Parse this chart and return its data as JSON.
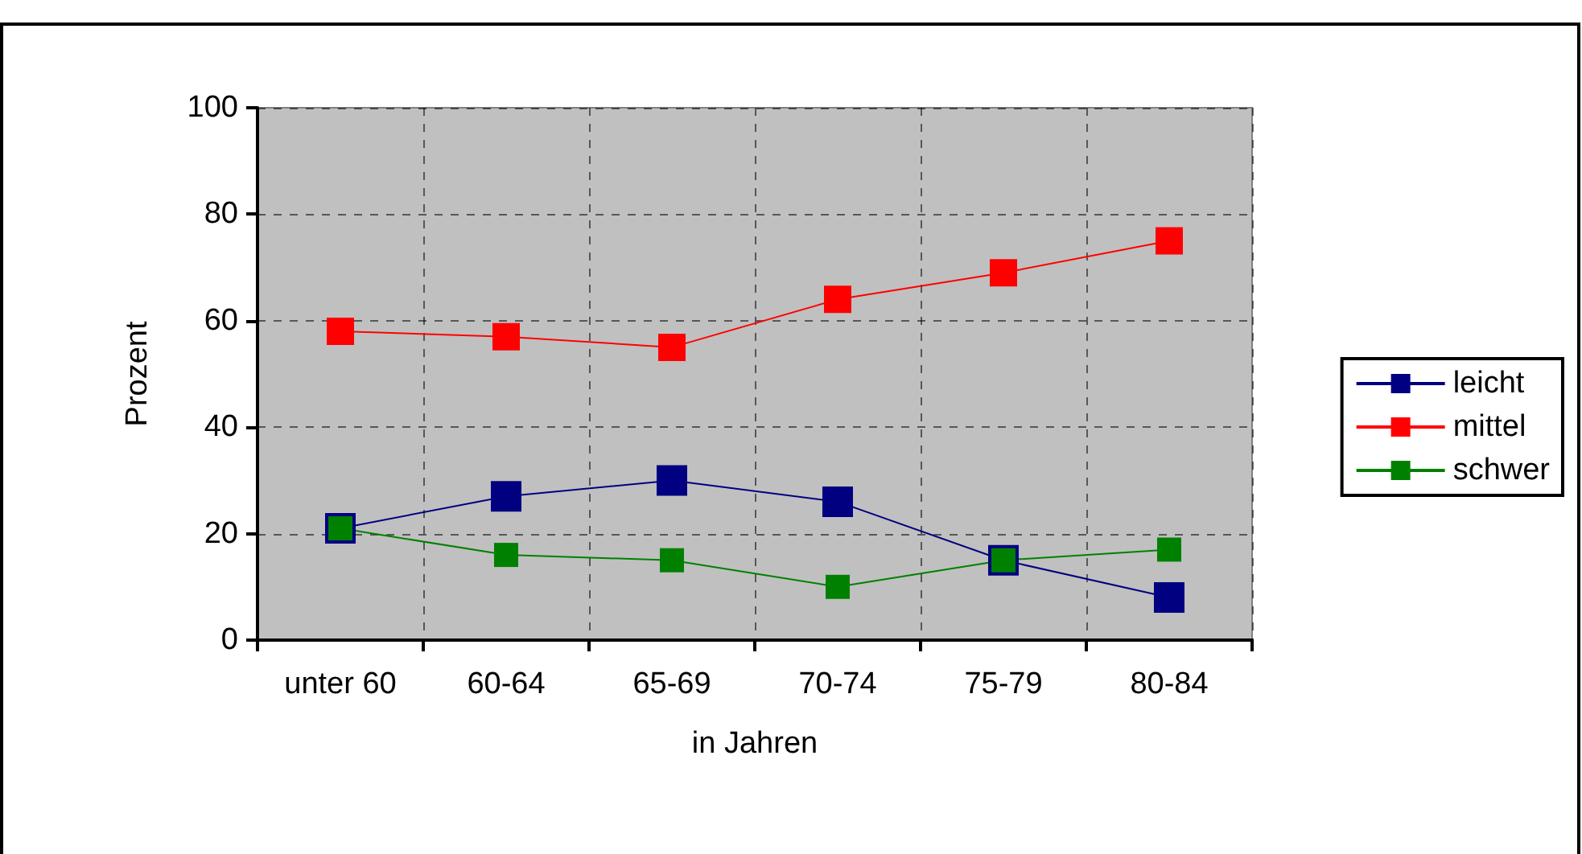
{
  "chart_data": {
    "type": "line",
    "xlabel": "in Jahren",
    "ylabel": "Prozent",
    "categories": [
      "unter 60",
      "60-64",
      "65-69",
      "70-74",
      "75-79",
      "80-84"
    ],
    "series": [
      {
        "name": "leicht",
        "color": "#000080",
        "values": [
          21,
          27,
          30,
          26,
          15,
          8
        ]
      },
      {
        "name": "mittel",
        "color": "#ff0000",
        "values": [
          58,
          57,
          55,
          64,
          69,
          75
        ]
      },
      {
        "name": "schwer",
        "color": "#008000",
        "values": [
          21,
          16,
          15,
          10,
          15,
          17
        ]
      }
    ],
    "ylim": [
      0,
      100
    ],
    "yticks": [
      0,
      20,
      40,
      60,
      80,
      100
    ],
    "grid": true,
    "legend": "right",
    "marker": "square",
    "line_style": "solid"
  }
}
